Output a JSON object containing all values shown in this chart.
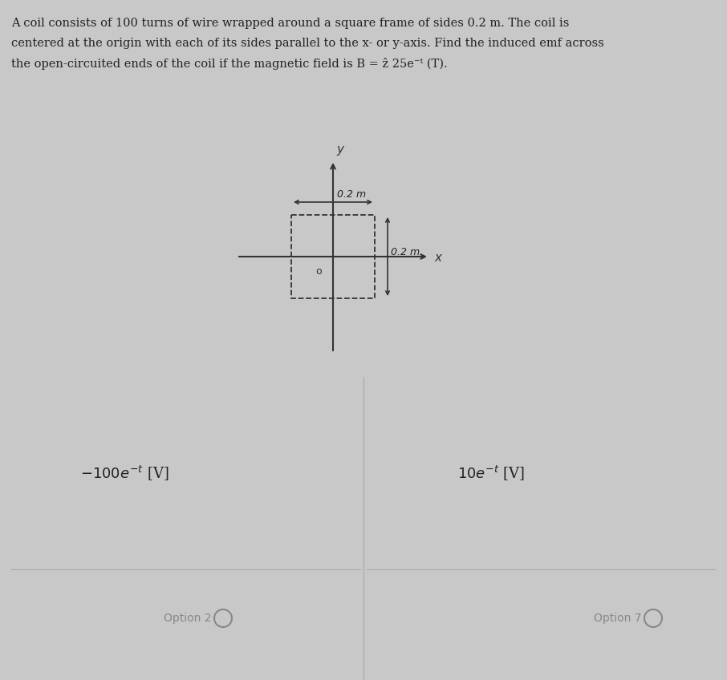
{
  "background_color": "#c8c8c8",
  "text_color": "#222222",
  "axis_color": "#333333",
  "box_color": "#333333",
  "dim_arrow_color": "#333333",
  "divider_color": "#aaaaaa",
  "option_color": "#888888",
  "problem_line1": "A coil consists of 100 turns of wire wrapped around a square frame of sides 0.2 m. The coil is",
  "problem_line2": "centered at the origin with each of its sides parallel to the x- or y-axis. Find the induced emf across",
  "problem_line3": "the open-circuited ends of the coil if the magnetic field is B = ẑ 25e⁻ᵗ (T).",
  "dim_label": "0.2 m",
  "origin_label": "o",
  "axis_x_label": "x",
  "axis_y_label": "y",
  "answer_left": "-100e^{-t} [V]",
  "answer_right": "10e^{-t} [V]",
  "option2_label": "Option 2",
  "option7_label": "Option 7",
  "fig_width": 9.06,
  "fig_height": 8.48,
  "dpi": 100
}
